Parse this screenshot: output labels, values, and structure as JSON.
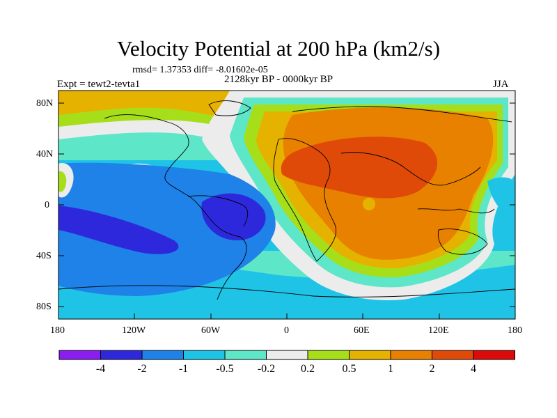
{
  "title": "Velocity Potential at 200 hPa (km2/s)",
  "stats": "rmsd= 1.37353 diff= -8.01602e-05",
  "period": "2128kyr BP - 0000kyr BP",
  "experiment": "Expt = tewt2-tevta1",
  "season": "JJA",
  "lat_labels": [
    "80N",
    "40N",
    "0",
    "40S",
    "80S"
  ],
  "lon_labels": [
    "180",
    "120W",
    "60W",
    "0",
    "60E",
    "120E",
    "180"
  ],
  "legend": {
    "labels": [
      "-4",
      "-2",
      "-1",
      "-0.5",
      "-0.2",
      "0.2",
      "0.5",
      "1",
      "2",
      "4"
    ],
    "colors": [
      "#8a1ef0",
      "#2e28dc",
      "#1e82e8",
      "#1ec3e6",
      "#5ee6c8",
      "#ececec",
      "#a6df1a",
      "#e6b200",
      "#e88000",
      "#e04a08",
      "#dc0a0a"
    ]
  },
  "palette": {
    "n4": "#2e28dc",
    "n2": "#1e82e8",
    "n1": "#1ec3e6",
    "n05": "#5ee6c8",
    "zero": "#ececec",
    "p02": "#a6df1a",
    "p05": "#e6b200",
    "p1": "#e88000",
    "p2": "#e04a08"
  }
}
